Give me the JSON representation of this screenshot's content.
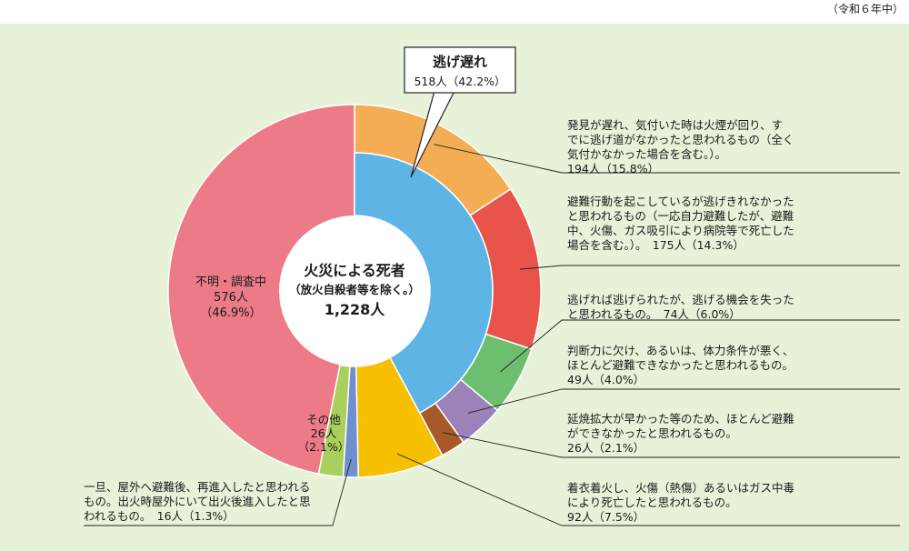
{
  "note": "（令和６年中）",
  "colors": {
    "panel": "#e8f2d8",
    "center": "#ffffff",
    "callout_stroke": "#222222",
    "leader": "#222222"
  },
  "chart_data": {
    "type": "pie",
    "variant": "donut-with-breakdown-ring",
    "center_label": {
      "title": "火災による死者",
      "subtitle": "（放火自殺者等を除く。）",
      "total": "1,228人"
    },
    "categories": [
      {
        "id": "escape-delay",
        "label": "逃げ遅れ",
        "value_text": "518人（42.2%）",
        "value": 518,
        "percent": 42.2,
        "color": "#5fb4e6",
        "breakdown": [
          {
            "id": "late-discovery",
            "lines": [
              "発見が遅れ、気付いた時は火煙が回り、す",
              "でに逃げ道がなかったと思われるもの（全く",
              "気付かなかった場合を含む。）。",
              "194人（15.8%）"
            ],
            "value": 194,
            "percent": 15.8,
            "color": "#f4ad55"
          },
          {
            "id": "could-not-escape",
            "lines": [
              "避難行動を起こしているが逃げきれなかった",
              "と思われるもの（一応自力避難したが、避難",
              "中、火傷、ガス吸引により病院等で死亡した",
              "場合を含む。）。　175人（14.3%）"
            ],
            "value": 175,
            "percent": 14.3,
            "color": "#e8534a"
          },
          {
            "id": "missed-chance",
            "lines": [
              "逃げれば逃げられたが、逃げる機会を失った",
              "と思われるもの。　74人（6.0%）"
            ],
            "value": 74,
            "percent": 6.0,
            "color": "#6dbf6f"
          },
          {
            "id": "lack-of-judgment",
            "lines": [
              "判断力に欠け、あるいは、体力条件が悪く、",
              "ほとんど避難できなかったと思われるもの。",
              "49人（4.0%）"
            ],
            "value": 49,
            "percent": 4.0,
            "color": "#9b82b8"
          },
          {
            "id": "fast-spread",
            "lines": [
              "延焼拡大が早かった等のため、ほとんど避難",
              "ができなかったと思われるもの。",
              "26人（2.1%）"
            ],
            "value": 26,
            "percent": 2.1,
            "color": "#a65a2a"
          }
        ]
      },
      {
        "id": "clothing-fire",
        "lines": [
          "着衣着火し、火傷（熱傷）あるいはガス中毒",
          "により死亡したと思われるもの。",
          "92人（7.5%）"
        ],
        "value": 92,
        "percent": 7.5,
        "color": "#f6c000"
      },
      {
        "id": "re-entry",
        "lines": [
          "一旦、屋外へ避難後、再進入したと思われる",
          "もの。出火時屋外にいて出火後進入したと思",
          "われるもの。　16人（1.3%）"
        ],
        "value": 16,
        "percent": 1.3,
        "color": "#6f8fd0"
      },
      {
        "id": "other",
        "lines": [
          "その他",
          "26人",
          "（2.1%）"
        ],
        "value": 26,
        "percent": 2.1,
        "color": "#a9cf5c"
      },
      {
        "id": "unknown",
        "lines": [
          "不明・調査中",
          "576人",
          "（46.9%）"
        ],
        "value": 576,
        "percent": 46.9,
        "color": "#ec7b87"
      }
    ]
  }
}
